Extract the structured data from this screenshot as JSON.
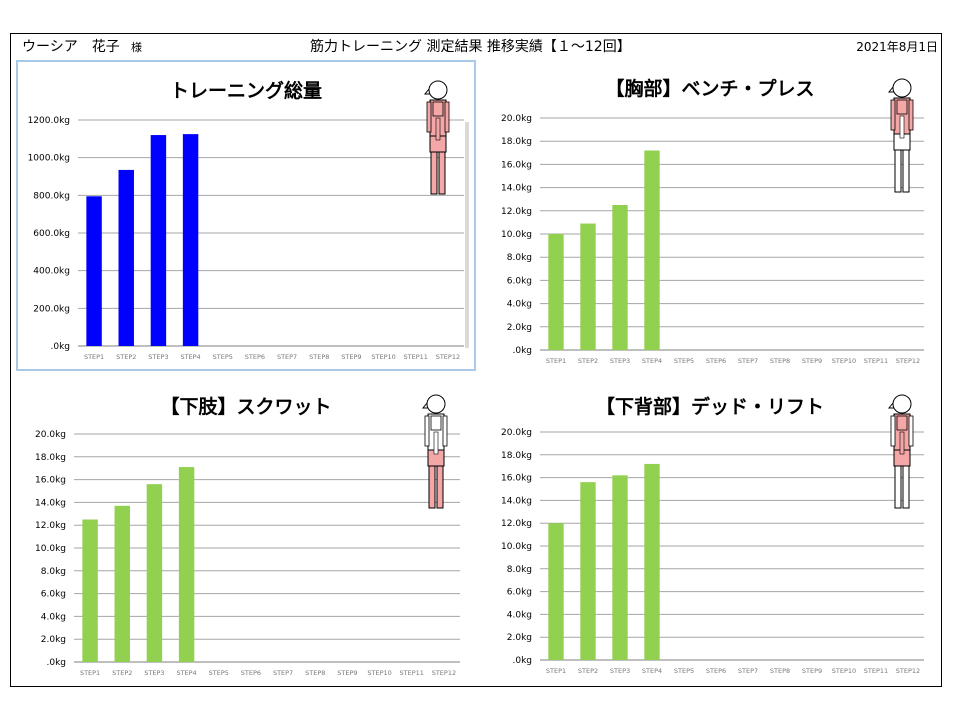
{
  "header": {
    "name": "ウーシア　花子",
    "honorific": "様",
    "title": "筋力トレーニング 測定結果 推移実績【１～12回】",
    "date": "2021年8月1日"
  },
  "colors": {
    "total_bar": "#0000ff",
    "part_bar": "#92d050",
    "body_highlight": "#f4a7a7",
    "body_outline": "#000000"
  },
  "chart_data": [
    {
      "type": "bar",
      "title": "トレーニング総量",
      "categories": [
        "STEP1",
        "STEP2",
        "STEP3",
        "STEP4",
        "STEP5",
        "STEP6",
        "STEP7",
        "STEP8",
        "STEP9",
        "STEP10",
        "STEP11",
        "STEP12"
      ],
      "values": [
        795,
        935,
        1120,
        1125,
        null,
        null,
        null,
        null,
        null,
        null,
        null,
        null
      ],
      "ylim": [
        0,
        1200
      ],
      "yticks": [
        ".0kg",
        "200.0kg",
        "400.0kg",
        "600.0kg",
        "800.0kg",
        "1000.0kg",
        "1200.0kg"
      ],
      "grid": true,
      "highlight": "full",
      "icon": "body-figure-icon"
    },
    {
      "type": "bar",
      "title": "【胸部】ベンチ・プレス",
      "categories": [
        "STEP1",
        "STEP2",
        "STEP3",
        "STEP4",
        "STEP5",
        "STEP6",
        "STEP7",
        "STEP8",
        "STEP9",
        "STEP10",
        "STEP11",
        "STEP12"
      ],
      "values": [
        10.0,
        10.9,
        12.5,
        17.2,
        null,
        null,
        null,
        null,
        null,
        null,
        null,
        null
      ],
      "ylim": [
        0,
        20
      ],
      "yticks": [
        ".0kg",
        "2.0kg",
        "4.0kg",
        "6.0kg",
        "8.0kg",
        "10.0kg",
        "12.0kg",
        "14.0kg",
        "16.0kg",
        "18.0kg",
        "20.0kg"
      ],
      "grid": true,
      "highlight": "chest",
      "icon": "body-figure-icon"
    },
    {
      "type": "bar",
      "title": "【下肢】スクワット",
      "categories": [
        "STEP1",
        "STEP2",
        "STEP3",
        "STEP4",
        "STEP5",
        "STEP6",
        "STEP7",
        "STEP8",
        "STEP9",
        "STEP10",
        "STEP11",
        "STEP12"
      ],
      "values": [
        12.5,
        13.7,
        15.6,
        17.1,
        null,
        null,
        null,
        null,
        null,
        null,
        null,
        null
      ],
      "ylim": [
        0,
        20
      ],
      "yticks": [
        ".0kg",
        "2.0kg",
        "4.0kg",
        "6.0kg",
        "8.0kg",
        "10.0kg",
        "12.0kg",
        "14.0kg",
        "16.0kg",
        "18.0kg",
        "20.0kg"
      ],
      "grid": true,
      "highlight": "legs",
      "icon": "body-figure-icon"
    },
    {
      "type": "bar",
      "title": "【下背部】デッド・リフト",
      "categories": [
        "STEP1",
        "STEP2",
        "STEP3",
        "STEP4",
        "STEP5",
        "STEP6",
        "STEP7",
        "STEP8",
        "STEP9",
        "STEP10",
        "STEP11",
        "STEP12"
      ],
      "values": [
        12.0,
        15.6,
        16.2,
        17.2,
        null,
        null,
        null,
        null,
        null,
        null,
        null,
        null
      ],
      "ylim": [
        0,
        20
      ],
      "yticks": [
        ".0kg",
        "2.0kg",
        "4.0kg",
        "6.0kg",
        "8.0kg",
        "10.0kg",
        "12.0kg",
        "14.0kg",
        "16.0kg",
        "18.0kg",
        "20.0kg"
      ],
      "grid": true,
      "highlight": "back",
      "icon": "body-figure-icon"
    }
  ]
}
